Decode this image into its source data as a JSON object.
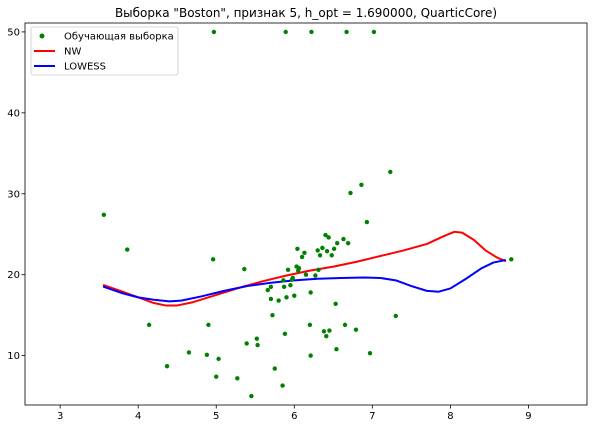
{
  "chart_data": {
    "type": "scatter",
    "title": "Выборка \"Boston\", признак 5, h_opt = 1.690000, QuarticCore)",
    "xlabel": "",
    "ylabel": "",
    "xlim": [
      2.55,
      9.75
    ],
    "ylim": [
      3.9,
      51.1
    ],
    "xticks": [
      3,
      4,
      5,
      6,
      7,
      8,
      9
    ],
    "yticks": [
      10,
      20,
      30,
      40,
      50
    ],
    "grid": false,
    "legend_position": "top-left",
    "series": [
      {
        "name": "Обучающая выборка",
        "kind": "scatter",
        "color": "#008000",
        "points": [
          [
            3.56,
            27.4
          ],
          [
            3.86,
            23.1
          ],
          [
            4.14,
            13.8
          ],
          [
            4.37,
            8.7
          ],
          [
            4.65,
            10.4
          ],
          [
            4.88,
            10.1
          ],
          [
            4.9,
            13.8
          ],
          [
            4.96,
            21.9
          ],
          [
            4.97,
            50
          ],
          [
            5.0,
            7.4
          ],
          [
            5.03,
            9.6
          ],
          [
            5.27,
            7.2
          ],
          [
            5.36,
            20.7
          ],
          [
            5.39,
            11.5
          ],
          [
            5.45,
            5.0
          ],
          [
            5.52,
            12.1
          ],
          [
            5.53,
            11.3
          ],
          [
            5.66,
            18.1
          ],
          [
            5.7,
            18.5
          ],
          [
            5.7,
            17.0
          ],
          [
            5.72,
            15.0
          ],
          [
            5.75,
            8.4
          ],
          [
            5.8,
            16.8
          ],
          [
            5.85,
            6.3
          ],
          [
            5.86,
            19.3
          ],
          [
            5.87,
            18.5
          ],
          [
            5.88,
            12.7
          ],
          [
            5.89,
            50
          ],
          [
            5.9,
            17.2
          ],
          [
            5.92,
            20.6
          ],
          [
            5.95,
            18.7
          ],
          [
            5.97,
            19.4
          ],
          [
            5.98,
            19.6
          ],
          [
            6.0,
            17.4
          ],
          [
            6.03,
            21.0
          ],
          [
            6.04,
            23.2
          ],
          [
            6.05,
            20.5
          ],
          [
            6.06,
            20.8
          ],
          [
            6.1,
            22.2
          ],
          [
            6.13,
            22.7
          ],
          [
            6.15,
            20.0
          ],
          [
            6.2,
            13.8
          ],
          [
            6.21,
            10.0
          ],
          [
            6.21,
            17.8
          ],
          [
            6.22,
            50
          ],
          [
            6.27,
            19.9
          ],
          [
            6.3,
            23.0
          ],
          [
            6.31,
            20.6
          ],
          [
            6.33,
            22.4
          ],
          [
            6.36,
            23.3
          ],
          [
            6.38,
            13.0
          ],
          [
            6.4,
            24.9
          ],
          [
            6.41,
            12.4
          ],
          [
            6.42,
            22.9
          ],
          [
            6.44,
            24.6
          ],
          [
            6.45,
            13.1
          ],
          [
            6.48,
            22.4
          ],
          [
            6.51,
            23.2
          ],
          [
            6.53,
            16.4
          ],
          [
            6.54,
            10.8
          ],
          [
            6.55,
            23.9
          ],
          [
            6.63,
            24.4
          ],
          [
            6.65,
            13.8
          ],
          [
            6.67,
            50
          ],
          [
            6.69,
            23.9
          ],
          [
            6.72,
            30.1
          ],
          [
            6.79,
            13.2
          ],
          [
            6.86,
            31.1
          ],
          [
            6.93,
            26.5
          ],
          [
            6.97,
            10.3
          ],
          [
            7.02,
            50
          ],
          [
            7.23,
            32.7
          ],
          [
            7.3,
            14.9
          ],
          [
            8.78,
            21.9
          ]
        ]
      },
      {
        "name": "NW",
        "kind": "line",
        "color": "#ff0000",
        "points": [
          [
            3.56,
            18.7
          ],
          [
            3.8,
            17.9
          ],
          [
            4.0,
            17.2
          ],
          [
            4.2,
            16.5
          ],
          [
            4.35,
            16.2
          ],
          [
            4.5,
            16.2
          ],
          [
            4.7,
            16.6
          ],
          [
            5.0,
            17.5
          ],
          [
            5.3,
            18.4
          ],
          [
            5.6,
            19.2
          ],
          [
            5.9,
            19.9
          ],
          [
            6.2,
            20.5
          ],
          [
            6.5,
            21.0
          ],
          [
            6.8,
            21.6
          ],
          [
            7.1,
            22.3
          ],
          [
            7.4,
            23.0
          ],
          [
            7.7,
            23.8
          ],
          [
            7.9,
            24.7
          ],
          [
            8.05,
            25.3
          ],
          [
            8.15,
            25.2
          ],
          [
            8.3,
            24.3
          ],
          [
            8.45,
            23.0
          ],
          [
            8.6,
            22.1
          ],
          [
            8.7,
            21.7
          ]
        ]
      },
      {
        "name": "LOWESS",
        "kind": "line",
        "color": "#0000ff",
        "points": [
          [
            3.56,
            18.5
          ],
          [
            3.8,
            17.7
          ],
          [
            4.0,
            17.2
          ],
          [
            4.2,
            16.9
          ],
          [
            4.4,
            16.7
          ],
          [
            4.55,
            16.8
          ],
          [
            4.8,
            17.3
          ],
          [
            5.1,
            18.0
          ],
          [
            5.4,
            18.6
          ],
          [
            5.7,
            19.0
          ],
          [
            6.0,
            19.3
          ],
          [
            6.3,
            19.5
          ],
          [
            6.6,
            19.6
          ],
          [
            6.9,
            19.65
          ],
          [
            7.1,
            19.6
          ],
          [
            7.3,
            19.3
          ],
          [
            7.5,
            18.6
          ],
          [
            7.7,
            18.0
          ],
          [
            7.85,
            17.9
          ],
          [
            8.0,
            18.3
          ],
          [
            8.2,
            19.5
          ],
          [
            8.4,
            20.8
          ],
          [
            8.55,
            21.5
          ],
          [
            8.7,
            21.8
          ]
        ]
      }
    ]
  }
}
